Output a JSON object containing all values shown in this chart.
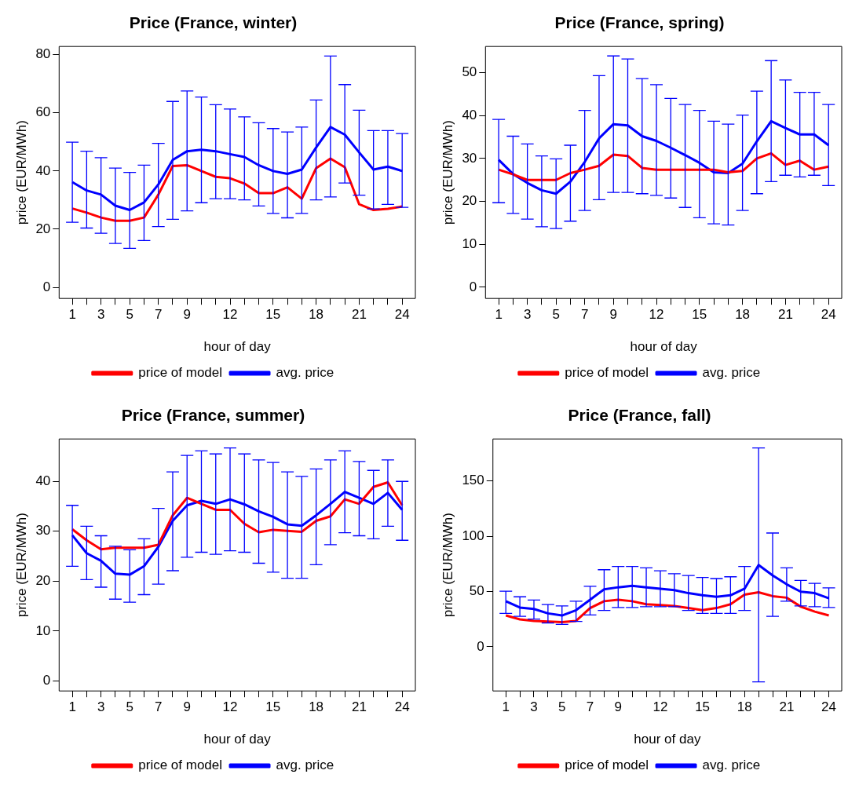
{
  "chart_data": [
    {
      "type": "line",
      "title": "Price (France, winter)",
      "xlabel": "hour of day",
      "ylabel": "price (EUR/MWh)",
      "legend": "bottom",
      "x": [
        1,
        2,
        3,
        4,
        5,
        6,
        7,
        8,
        9,
        10,
        11,
        12,
        13,
        14,
        15,
        16,
        17,
        18,
        19,
        20,
        21,
        22,
        23,
        24
      ],
      "xlim": [
        0.08,
        24.92
      ],
      "xticks": [
        1,
        {
          "value": 2,
          "label": null
        },
        3,
        {
          "value": 4,
          "label": null
        },
        5,
        {
          "value": 6,
          "label": null
        },
        7,
        {
          "value": 8,
          "label": null
        },
        9,
        {
          "value": 10,
          "label": null
        },
        {
          "value": 11,
          "label": null
        },
        12,
        {
          "value": 13,
          "label": null
        },
        {
          "value": 14,
          "label": null
        },
        15,
        {
          "value": 16,
          "label": null
        },
        {
          "value": 17,
          "label": null
        },
        18,
        {
          "value": 19,
          "label": null
        },
        {
          "value": 20,
          "label": null
        },
        21,
        {
          "value": 22,
          "label": null
        },
        {
          "value": 23,
          "label": null
        },
        24
      ],
      "ylim": [
        -3.8,
        82.8
      ],
      "yticks": [
        0,
        20,
        40,
        60,
        80
      ],
      "series": [
        {
          "name": "price of model",
          "color": "#ff0000",
          "values": [
            27.1,
            25.7,
            24.0,
            22.9,
            22.9,
            24.0,
            31.9,
            41.7,
            42.0,
            40.0,
            38.0,
            37.5,
            35.7,
            32.4,
            32.4,
            34.4,
            30.5,
            41.0,
            44.3,
            41.3,
            28.6,
            26.6,
            27.0,
            27.8
          ]
        },
        {
          "name": "avg. price",
          "color": "#0000ff",
          "values": [
            36.2,
            33.3,
            31.9,
            28.1,
            26.6,
            29.2,
            35.4,
            43.8,
            46.8,
            47.3,
            46.8,
            45.8,
            44.8,
            42.0,
            40.0,
            39.0,
            40.5,
            48.1,
            55.1,
            52.5,
            46.4,
            40.5,
            41.5,
            40.0
          ],
          "errors": [
            [
              22.4,
              49.9
            ],
            [
              20.4,
              46.8
            ],
            [
              18.6,
              44.6
            ],
            [
              15.1,
              41.0
            ],
            [
              13.4,
              39.5
            ],
            [
              16.1,
              42.0
            ],
            [
              20.9,
              49.5
            ],
            [
              23.4,
              63.9
            ],
            [
              26.3,
              67.5
            ],
            [
              29.1,
              65.4
            ],
            [
              30.5,
              62.8
            ],
            [
              30.5,
              61.3
            ],
            [
              30.1,
              58.6
            ],
            [
              28.0,
              56.6
            ],
            [
              25.4,
              54.6
            ],
            [
              23.9,
              53.4
            ],
            [
              25.4,
              55.1
            ],
            [
              30.1,
              64.4
            ],
            [
              31.1,
              79.5
            ],
            [
              35.9,
              69.7
            ],
            [
              31.7,
              60.9
            ],
            [
              27.0,
              53.9
            ],
            [
              28.5,
              53.9
            ],
            [
              27.5,
              52.9
            ]
          ]
        }
      ]
    },
    {
      "type": "line",
      "title": "Price (France, spring)",
      "xlabel": "hour of day",
      "ylabel": "price (EUR/MWh)",
      "legend": "bottom",
      "x": [
        1,
        2,
        3,
        4,
        5,
        6,
        7,
        8,
        9,
        10,
        11,
        12,
        13,
        14,
        15,
        16,
        17,
        18,
        19,
        20,
        21,
        22,
        23,
        24
      ],
      "xlim": [
        0.08,
        24.92
      ],
      "xticks": [
        1,
        {
          "value": 2,
          "label": null
        },
        3,
        {
          "value": 4,
          "label": null
        },
        5,
        {
          "value": 6,
          "label": null
        },
        7,
        {
          "value": 8,
          "label": null
        },
        9,
        {
          "value": 10,
          "label": null
        },
        {
          "value": 11,
          "label": null
        },
        12,
        {
          "value": 13,
          "label": null
        },
        {
          "value": 14,
          "label": null
        },
        15,
        {
          "value": 16,
          "label": null
        },
        {
          "value": 17,
          "label": null
        },
        18,
        {
          "value": 19,
          "label": null
        },
        {
          "value": 20,
          "label": null
        },
        21,
        {
          "value": 22,
          "label": null
        },
        {
          "value": 23,
          "label": null
        },
        24
      ],
      "ylim": [
        -2.6,
        56.1
      ],
      "yticks": [
        0,
        10,
        20,
        30,
        40,
        50
      ],
      "series": [
        {
          "name": "price of model",
          "color": "#ff0000",
          "values": [
            27.4,
            26.3,
            25.0,
            25.0,
            25.0,
            26.6,
            27.4,
            28.3,
            30.9,
            30.6,
            27.8,
            27.4,
            27.4,
            27.4,
            27.4,
            27.4,
            26.8,
            27.1,
            30.0,
            31.2,
            28.5,
            29.5,
            27.4,
            28.1
          ]
        },
        {
          "name": "avg. price",
          "color": "#0000ff",
          "values": [
            29.7,
            26.4,
            24.3,
            22.6,
            21.8,
            24.6,
            29.2,
            34.7,
            38.0,
            37.7,
            35.2,
            34.1,
            32.5,
            30.8,
            29.0,
            26.8,
            26.6,
            28.8,
            34.0,
            38.7,
            37.1,
            35.6,
            35.6,
            33.1
          ],
          "errors": [
            [
              19.7,
              39.1
            ],
            [
              17.2,
              35.2
            ],
            [
              15.9,
              33.4
            ],
            [
              14.1,
              30.6
            ],
            [
              13.7,
              29.9
            ],
            [
              15.4,
              33.1
            ],
            [
              17.9,
              41.2
            ],
            [
              20.4,
              49.3
            ],
            [
              22.1,
              53.9
            ],
            [
              22.1,
              53.2
            ],
            [
              21.8,
              48.6
            ],
            [
              21.4,
              47.2
            ],
            [
              20.8,
              44.0
            ],
            [
              18.6,
              42.6
            ],
            [
              16.2,
              41.2
            ],
            [
              14.8,
              38.7
            ],
            [
              14.5,
              38.0
            ],
            [
              17.9,
              40.1
            ],
            [
              21.8,
              45.7
            ],
            [
              24.6,
              52.8
            ],
            [
              26.1,
              48.3
            ],
            [
              25.7,
              45.4
            ],
            [
              26.1,
              45.4
            ],
            [
              23.7,
              42.6
            ]
          ]
        }
      ]
    },
    {
      "type": "line",
      "title": "Price (France, summer)",
      "xlabel": "hour of day",
      "ylabel": "price (EUR/MWh)",
      "legend": "bottom",
      "x": [
        1,
        2,
        3,
        4,
        5,
        6,
        7,
        8,
        9,
        10,
        11,
        12,
        13,
        14,
        15,
        16,
        17,
        18,
        19,
        20,
        21,
        22,
        23,
        24
      ],
      "xlim": [
        0.08,
        24.92
      ],
      "xticks": [
        1,
        {
          "value": 2,
          "label": null
        },
        3,
        {
          "value": 4,
          "label": null
        },
        5,
        {
          "value": 6,
          "label": null
        },
        7,
        {
          "value": 8,
          "label": null
        },
        9,
        {
          "value": 10,
          "label": null
        },
        {
          "value": 11,
          "label": null
        },
        12,
        {
          "value": 13,
          "label": null
        },
        {
          "value": 14,
          "label": null
        },
        15,
        {
          "value": 16,
          "label": null
        },
        {
          "value": 17,
          "label": null
        },
        18,
        {
          "value": 19,
          "label": null
        },
        {
          "value": 20,
          "label": null
        },
        21,
        {
          "value": 22,
          "label": null
        },
        {
          "value": 23,
          "label": null
        },
        24
      ],
      "ylim": [
        -2.0,
        48.5
      ],
      "yticks": [
        0,
        10,
        20,
        30,
        40
      ],
      "series": [
        {
          "name": "price of model",
          "color": "#ff0000",
          "values": [
            30.4,
            28.2,
            26.4,
            26.7,
            26.7,
            26.7,
            27.3,
            33.2,
            36.7,
            35.5,
            34.3,
            34.3,
            31.5,
            29.8,
            30.3,
            30.1,
            29.9,
            32.1,
            33.0,
            36.4,
            35.5,
            38.9,
            39.8,
            35.2
          ]
        },
        {
          "name": "avg. price",
          "color": "#0000ff",
          "values": [
            29.2,
            25.6,
            24.1,
            21.5,
            21.3,
            23.0,
            26.9,
            32.1,
            35.2,
            36.1,
            35.5,
            36.4,
            35.4,
            34.0,
            32.9,
            31.4,
            31.1,
            33.2,
            35.5,
            37.9,
            36.7,
            35.5,
            37.7,
            34.3
          ],
          "errors": [
            [
              23.0,
              35.2
            ],
            [
              20.3,
              31.0
            ],
            [
              18.8,
              29.1
            ],
            [
              16.4,
              27.0
            ],
            [
              15.8,
              26.3
            ],
            [
              17.3,
              28.5
            ],
            [
              19.4,
              34.6
            ],
            [
              22.1,
              41.9
            ],
            [
              24.8,
              45.2
            ],
            [
              25.8,
              46.1
            ],
            [
              25.4,
              45.5
            ],
            [
              26.1,
              46.7
            ],
            [
              25.8,
              45.5
            ],
            [
              23.6,
              44.3
            ],
            [
              21.8,
              43.8
            ],
            [
              20.6,
              41.9
            ],
            [
              20.6,
              41.0
            ],
            [
              23.3,
              42.5
            ],
            [
              27.3,
              44.3
            ],
            [
              29.7,
              46.1
            ],
            [
              29.1,
              44.0
            ],
            [
              28.5,
              42.2
            ],
            [
              31.0,
              44.3
            ],
            [
              28.2,
              40.0
            ]
          ]
        }
      ]
    },
    {
      "type": "line",
      "title": "Price (France, fall)",
      "xlabel": "hour of day",
      "ylabel": "price (EUR/MWh)",
      "legend": "bottom",
      "x": [
        1,
        2,
        3,
        4,
        5,
        6,
        7,
        8,
        9,
        10,
        11,
        12,
        13,
        14,
        15,
        16,
        17,
        18,
        19,
        20,
        21,
        22,
        23,
        24
      ],
      "xlim": [
        0.08,
        24.92
      ],
      "xticks": [
        1,
        {
          "value": 2,
          "label": null
        },
        3,
        {
          "value": 4,
          "label": null
        },
        5,
        {
          "value": 6,
          "label": null
        },
        7,
        {
          "value": 8,
          "label": null
        },
        9,
        {
          "value": 10,
          "label": null
        },
        {
          "value": 11,
          "label": null
        },
        12,
        {
          "value": 13,
          "label": null
        },
        {
          "value": 14,
          "label": null
        },
        15,
        {
          "value": 16,
          "label": null
        },
        {
          "value": 17,
          "label": null
        },
        18,
        {
          "value": 19,
          "label": null
        },
        {
          "value": 20,
          "label": null
        },
        21,
        {
          "value": 22,
          "label": null
        },
        {
          "value": 23,
          "label": null
        },
        24
      ],
      "ylim": [
        -40,
        188
      ],
      "yticks": [
        0,
        50,
        100,
        150
      ],
      "series": [
        {
          "name": "price of model",
          "color": "#ff0000",
          "values": [
            28.3,
            24.8,
            23.4,
            22.9,
            22.3,
            23.4,
            35.0,
            41.2,
            42.5,
            41.2,
            38.5,
            37.7,
            36.9,
            35.0,
            33.1,
            35.0,
            38.5,
            47.1,
            49.3,
            45.8,
            44.4,
            36.3,
            31.8,
            28.3
          ]
        },
        {
          "name": "avg. price",
          "color": "#0000ff",
          "values": [
            41.2,
            35.5,
            34.2,
            30.2,
            28.3,
            33.1,
            42.5,
            52.0,
            53.8,
            55.2,
            53.8,
            52.5,
            51.2,
            48.5,
            46.6,
            45.2,
            46.6,
            52.5,
            74.0,
            64.6,
            56.5,
            49.8,
            48.5,
            43.9
          ],
          "errors": [
            [
              30.2,
              50.3
            ],
            [
              27.5,
              45.2
            ],
            [
              25.0,
              42.3
            ],
            [
              21.5,
              38.2
            ],
            [
              20.2,
              36.9
            ],
            [
              22.9,
              41.2
            ],
            [
              28.8,
              54.7
            ],
            [
              32.8,
              69.7
            ],
            [
              35.5,
              72.7
            ],
            [
              35.5,
              72.7
            ],
            [
              36.3,
              71.4
            ],
            [
              36.3,
              68.7
            ],
            [
              36.3,
              66.0
            ],
            [
              32.8,
              64.4
            ],
            [
              30.2,
              62.7
            ],
            [
              30.2,
              61.7
            ],
            [
              30.2,
              63.3
            ],
            [
              32.8,
              72.7
            ],
            [
              -31.8,
              179.9
            ],
            [
              27.5,
              102.9
            ],
            [
              41.2,
              71.4
            ],
            [
              36.9,
              60.0
            ],
            [
              36.3,
              57.3
            ],
            [
              35.5,
              53.3
            ]
          ]
        }
      ]
    }
  ]
}
